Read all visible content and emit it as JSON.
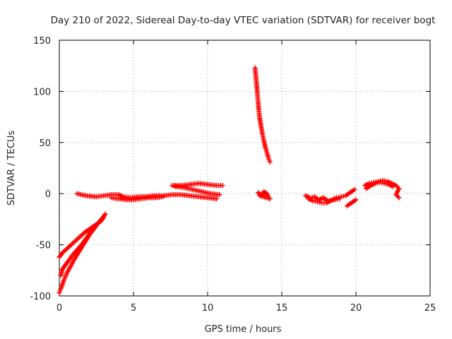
{
  "chart_data": {
    "type": "scatter",
    "title": "Day 210 of 2022, Sidereal Day-to-day VTEC variation (SDTVAR) for receiver bogt",
    "xlabel": "GPS time / hours",
    "ylabel": "SDTVAR / TECUs",
    "xlim": [
      0,
      25
    ],
    "ylim": [
      -100,
      150
    ],
    "x_ticks": [
      "0",
      "5",
      "10",
      "15",
      "20",
      "25"
    ],
    "y_ticks": [
      "-100",
      "-50",
      "0",
      "50",
      "100",
      "150"
    ],
    "grid": true,
    "marker": "plus",
    "color": "#ff0000",
    "segments": [
      {
        "name": "early-lower-branch",
        "points": [
          [
            0.0,
            -97
          ],
          [
            0.1,
            -93
          ],
          [
            0.3,
            -85
          ],
          [
            0.5,
            -78
          ],
          [
            0.8,
            -70
          ],
          [
            1.1,
            -62
          ],
          [
            1.4,
            -55
          ],
          [
            1.7,
            -48
          ],
          [
            2.0,
            -41
          ],
          [
            2.3,
            -35
          ],
          [
            2.6,
            -29
          ],
          [
            2.9,
            -24
          ],
          [
            3.1,
            -20
          ]
        ]
      },
      {
        "name": "early-upper-branch",
        "points": [
          [
            0.0,
            -62
          ],
          [
            0.2,
            -58
          ],
          [
            0.5,
            -54
          ],
          [
            0.8,
            -50
          ],
          [
            1.1,
            -46
          ],
          [
            1.4,
            -42
          ],
          [
            1.7,
            -38
          ],
          [
            2.0,
            -35
          ],
          [
            2.3,
            -32
          ],
          [
            2.6,
            -29
          ],
          [
            2.8,
            -27
          ],
          [
            3.0,
            -23
          ]
        ]
      },
      {
        "name": "early-inner-branch",
        "points": [
          [
            0.1,
            -80
          ],
          [
            0.2,
            -74
          ],
          [
            0.4,
            -70
          ],
          [
            0.6,
            -66
          ],
          [
            0.9,
            -60
          ],
          [
            1.2,
            -55
          ],
          [
            1.5,
            -50
          ],
          [
            1.8,
            -44
          ],
          [
            2.1,
            -38
          ],
          [
            2.4,
            -33
          ]
        ]
      },
      {
        "name": "morning-band",
        "points": [
          [
            1.2,
            0
          ],
          [
            1.8,
            -2
          ],
          [
            2.5,
            -3
          ],
          [
            3.0,
            -2
          ],
          [
            3.5,
            -1
          ],
          [
            4.0,
            -1
          ],
          [
            4.3,
            -3
          ],
          [
            4.8,
            -4
          ],
          [
            5.3,
            -3
          ],
          [
            5.8,
            -3
          ],
          [
            6.3,
            -2
          ],
          [
            7.0,
            -2
          ],
          [
            7.6,
            -1
          ],
          [
            8.2,
            -1
          ],
          [
            8.8,
            -2
          ],
          [
            9.4,
            -3
          ],
          [
            10.0,
            -4
          ],
          [
            10.6,
            -5
          ]
        ]
      },
      {
        "name": "morning-band-lower",
        "points": [
          [
            3.5,
            -4
          ],
          [
            4.0,
            -5
          ],
          [
            4.5,
            -6
          ],
          [
            5.0,
            -6
          ],
          [
            5.5,
            -5
          ],
          [
            6.0,
            -4
          ],
          [
            6.5,
            -4
          ],
          [
            7.0,
            -3
          ]
        ]
      },
      {
        "name": "midday-loop-top",
        "points": [
          [
            7.6,
            8
          ],
          [
            8.2,
            8
          ],
          [
            8.8,
            9
          ],
          [
            9.4,
            10
          ],
          [
            10.0,
            9
          ],
          [
            10.6,
            8
          ],
          [
            11.0,
            8
          ]
        ]
      },
      {
        "name": "midday-loop-diag",
        "points": [
          [
            7.8,
            7
          ],
          [
            8.4,
            6
          ],
          [
            9.0,
            4
          ],
          [
            9.6,
            2
          ],
          [
            10.2,
            0
          ],
          [
            10.8,
            -1
          ]
        ]
      },
      {
        "name": "spike",
        "points": [
          [
            13.2,
            123
          ],
          [
            13.25,
            115
          ],
          [
            13.3,
            107
          ],
          [
            13.35,
            99
          ],
          [
            13.4,
            90
          ],
          [
            13.45,
            82
          ],
          [
            13.5,
            75
          ],
          [
            13.6,
            66
          ],
          [
            13.7,
            58
          ],
          [
            13.8,
            51
          ],
          [
            13.9,
            45
          ],
          [
            14.0,
            40
          ],
          [
            14.1,
            35
          ],
          [
            14.2,
            31
          ]
        ]
      },
      {
        "name": "post-spike-cluster",
        "points": [
          [
            13.4,
            1
          ],
          [
            13.6,
            -1
          ],
          [
            13.8,
            2
          ],
          [
            14.0,
            0
          ],
          [
            14.1,
            -3
          ],
          [
            14.2,
            -5
          ],
          [
            13.5,
            -2
          ],
          [
            13.9,
            1
          ]
        ]
      },
      {
        "name": "evening-cluster",
        "points": [
          [
            16.6,
            -2
          ],
          [
            16.9,
            -4
          ],
          [
            17.2,
            -3
          ],
          [
            17.5,
            -6
          ],
          [
            17.8,
            -4
          ],
          [
            18.1,
            -7
          ],
          [
            18.4,
            -6
          ],
          [
            18.7,
            -4
          ],
          [
            19.0,
            -3
          ],
          [
            19.3,
            -2
          ],
          [
            19.6,
            1
          ],
          [
            19.9,
            4
          ]
        ]
      },
      {
        "name": "evening-cluster-lower",
        "points": [
          [
            16.8,
            -5
          ],
          [
            17.1,
            -7
          ],
          [
            17.4,
            -8
          ],
          [
            17.7,
            -9
          ],
          [
            18.0,
            -9
          ],
          [
            18.3,
            -7
          ],
          [
            18.6,
            -6
          ],
          [
            18.9,
            -5
          ]
        ]
      },
      {
        "name": "evening-tail",
        "points": [
          [
            19.4,
            -12
          ],
          [
            19.6,
            -10
          ],
          [
            19.8,
            -8
          ],
          [
            20.0,
            -6
          ]
        ]
      },
      {
        "name": "late-arc",
        "points": [
          [
            20.6,
            8
          ],
          [
            20.9,
            10
          ],
          [
            21.2,
            11
          ],
          [
            21.5,
            12
          ],
          [
            21.8,
            13
          ],
          [
            22.1,
            12
          ],
          [
            22.4,
            10
          ],
          [
            22.7,
            8
          ],
          [
            22.9,
            5
          ],
          [
            22.7,
            -1
          ],
          [
            22.9,
            -4
          ]
        ]
      },
      {
        "name": "late-arc-lower",
        "points": [
          [
            20.7,
            5
          ],
          [
            21.0,
            8
          ],
          [
            21.3,
            10
          ],
          [
            21.6,
            11
          ],
          [
            21.9,
            10
          ],
          [
            22.2,
            9
          ],
          [
            22.5,
            7
          ]
        ]
      }
    ]
  }
}
